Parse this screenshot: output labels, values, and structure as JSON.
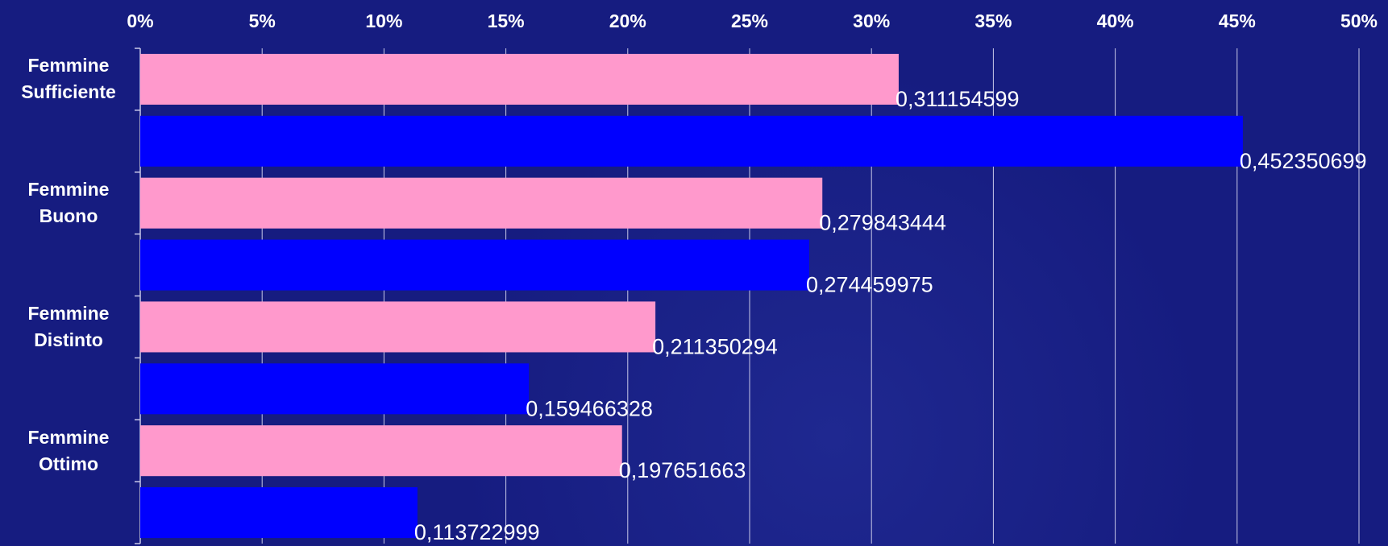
{
  "chart_data": {
    "type": "hbar",
    "categories": [
      "Femmine Sufficiente",
      null,
      "Femmine Buono",
      null,
      "Femmine Distinto",
      null,
      "Femmine Ottimo",
      null
    ],
    "values": [
      31.1154599,
      45.2350699,
      27.9843444,
      27.4459975,
      21.1350294,
      15.9466328,
      19.7651663,
      11.3722999
    ],
    "value_labels": [
      "0,311154599",
      "0,452350699",
      "0,279843444",
      "0,274459975",
      "0,211350294",
      "0,159466328",
      "0,197651663",
      "0,113722999"
    ],
    "colors": [
      "#ff99cc",
      "#0000ff",
      "#ff99cc",
      "#0000ff",
      "#ff99cc",
      "#0000ff",
      "#ff99cc",
      "#0000ff"
    ],
    "xlim": [
      0,
      50
    ],
    "xticks": [
      {
        "value": 0,
        "label": "0%"
      },
      {
        "value": 5,
        "label": "5%"
      },
      {
        "value": 10,
        "label": "10%"
      },
      {
        "value": 15,
        "label": "15%"
      },
      {
        "value": 20,
        "label": "20%"
      },
      {
        "value": 25,
        "label": "25%"
      },
      {
        "value": 30,
        "label": "30%"
      },
      {
        "value": 35,
        "label": "35%"
      },
      {
        "value": 40,
        "label": "40%"
      },
      {
        "value": 45,
        "label": "45%"
      },
      {
        "value": 50,
        "label": "50%"
      }
    ],
    "grid": true
  }
}
